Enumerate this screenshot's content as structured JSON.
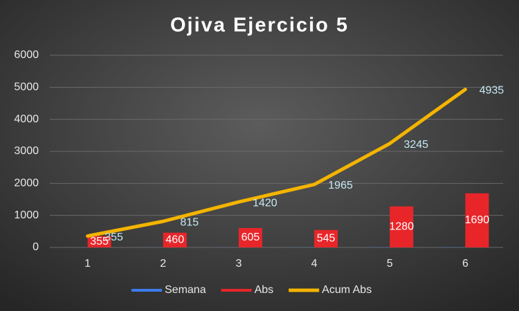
{
  "chart_data": {
    "type": "bar",
    "title": "Ojiva Ejercicio 5",
    "categories": [
      "1",
      "2",
      "3",
      "4",
      "5",
      "6"
    ],
    "series": [
      {
        "name": "Semana",
        "color": "#3c7df0",
        "type": "bar",
        "values": [
          1,
          2,
          3,
          4,
          5,
          6
        ]
      },
      {
        "name": "Abs",
        "color": "#e8262a",
        "type": "bar",
        "values": [
          355,
          460,
          605,
          545,
          1280,
          1690
        ],
        "label_color": "#ffffff"
      },
      {
        "name": "Acum Abs",
        "color": "#f4b400",
        "type": "line",
        "values": [
          355,
          815,
          1420,
          1965,
          3245,
          4935
        ],
        "label_color": "#c6e9f4"
      }
    ],
    "ylim": [
      0,
      6000
    ],
    "yticks": [
      0,
      1000,
      2000,
      3000,
      4000,
      5000,
      6000
    ],
    "grid": true,
    "legend": "bottom"
  }
}
